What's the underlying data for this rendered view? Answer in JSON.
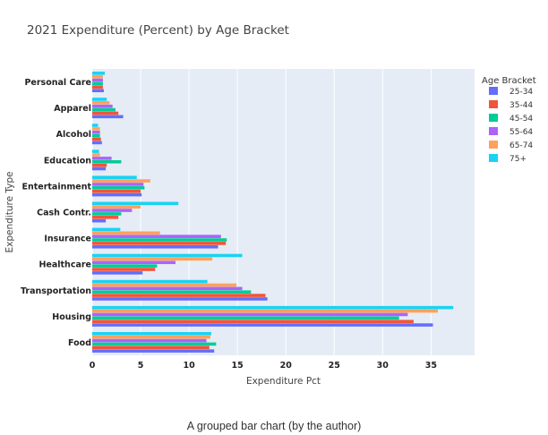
{
  "title": "2021 Expenditure (Percent) by Age Bracket",
  "caption": "A grouped bar chart (by the author)",
  "chart_data": {
    "type": "bar",
    "orientation": "horizontal",
    "barmode": "group",
    "title": "2021 Expenditure (Percent) by Age Bracket",
    "xlabel": "Expenditure Pct",
    "ylabel": "Expenditure Type",
    "xlim": [
      0,
      39.5
    ],
    "xticks": [
      "0",
      "5",
      "10",
      "15",
      "20",
      "25",
      "30",
      "35"
    ],
    "xtick_values": [
      0,
      5,
      10,
      15,
      20,
      25,
      30,
      35
    ],
    "grid": true,
    "background": "#e5ecf6",
    "legend_title": "Age Bracket",
    "legend_position": "right",
    "categories": [
      "Food",
      "Housing",
      "Transportation",
      "Healthcare",
      "Insurance",
      "Cash Contr.",
      "Entertainment",
      "Education",
      "Alcohol",
      "Apparel",
      "Personal Care"
    ],
    "series": [
      {
        "name": "25-34",
        "color": "#636efa",
        "values": [
          12.6,
          35.2,
          18.1,
          5.2,
          13.0,
          1.4,
          5.1,
          1.4,
          1.0,
          3.2,
          1.2
        ]
      },
      {
        "name": "35-44",
        "color": "#ef553b",
        "values": [
          12.1,
          33.2,
          17.9,
          6.5,
          13.8,
          2.7,
          5.0,
          1.5,
          0.9,
          2.7,
          1.1
        ]
      },
      {
        "name": "45-54",
        "color": "#00cc96",
        "values": [
          12.8,
          31.7,
          16.4,
          6.7,
          13.9,
          3.0,
          5.4,
          3.0,
          0.8,
          2.4,
          1.1
        ]
      },
      {
        "name": "55-64",
        "color": "#ab63fa",
        "values": [
          11.8,
          32.6,
          15.5,
          8.6,
          13.3,
          4.1,
          5.3,
          2.0,
          0.8,
          2.1,
          1.1
        ]
      },
      {
        "name": "65-74",
        "color": "#ffa15a",
        "values": [
          12.2,
          35.7,
          14.9,
          12.4,
          7.0,
          5.0,
          6.0,
          0.8,
          0.8,
          1.8,
          1.1
        ]
      },
      {
        "name": "75+",
        "color": "#19d3f3",
        "values": [
          12.3,
          37.3,
          11.9,
          15.5,
          2.9,
          8.9,
          4.6,
          0.7,
          0.6,
          1.5,
          1.3
        ]
      }
    ]
  }
}
